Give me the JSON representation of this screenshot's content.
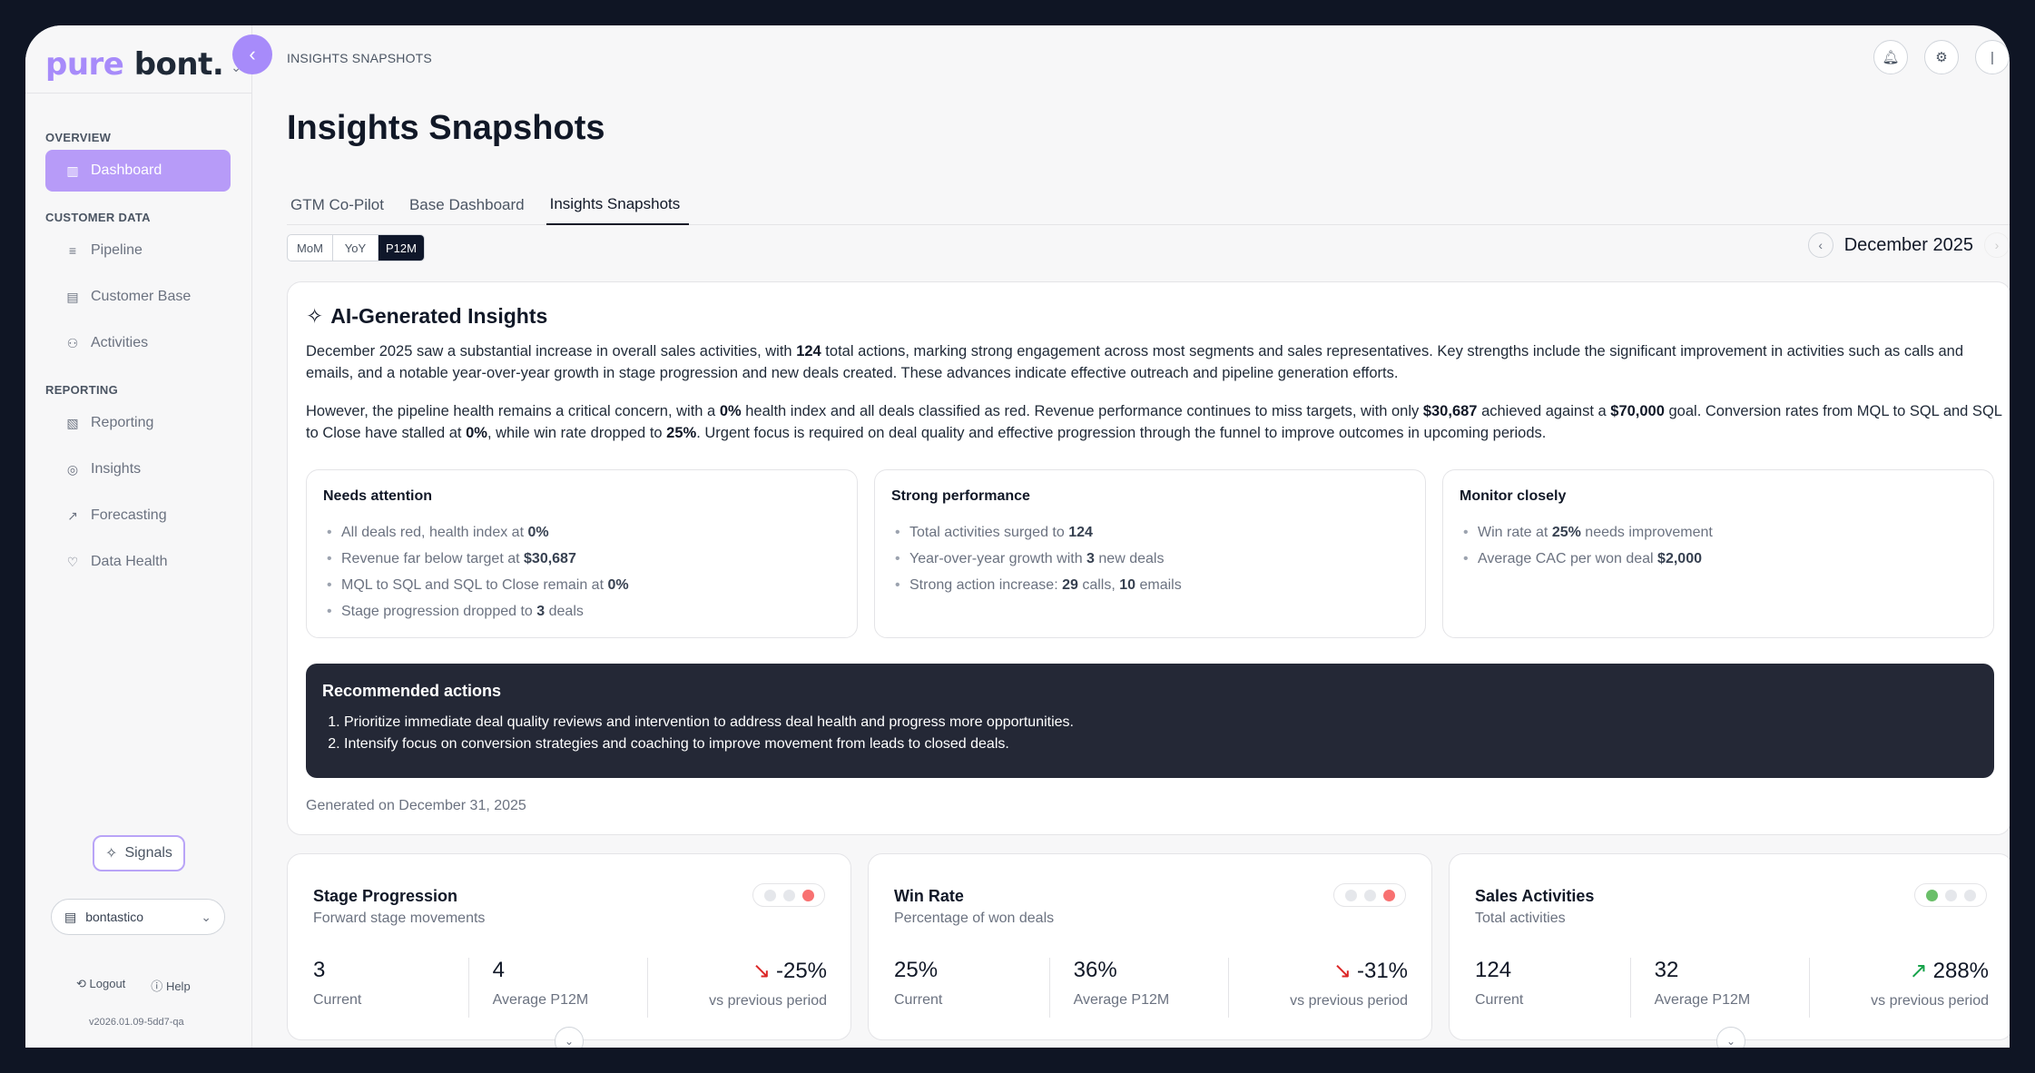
{
  "brand": {
    "part1": "pure",
    "part2": "bont."
  },
  "breadcrumb": "INSIGHTS SNAPSHOTS",
  "sidebar": {
    "sections": [
      {
        "label": "OVERVIEW",
        "items": [
          {
            "label": "Dashboard",
            "icon": "dashboard-icon",
            "active": true
          }
        ]
      },
      {
        "label": "CUSTOMER DATA",
        "items": [
          {
            "label": "Pipeline",
            "icon": "database-icon"
          },
          {
            "label": "Customer Base",
            "icon": "building-icon"
          },
          {
            "label": "Activities",
            "icon": "people-icon"
          }
        ]
      },
      {
        "label": "REPORTING",
        "items": [
          {
            "label": "Reporting",
            "icon": "report-icon"
          },
          {
            "label": "Insights",
            "icon": "insights-icon"
          },
          {
            "label": "Forecasting",
            "icon": "trend-icon"
          },
          {
            "label": "Data Health",
            "icon": "heart-icon"
          }
        ]
      }
    ],
    "signals_label": "Signals",
    "workspace": "bontastico",
    "logout_label": "Logout",
    "help_label": "Help",
    "version": "v2026.01.09-5dd7-qa"
  },
  "page": {
    "title": "Insights Snapshots",
    "tabs": [
      "GTM Co-Pilot",
      "Base Dashboard",
      "Insights Snapshots"
    ],
    "active_tab": "Insights Snapshots",
    "period_options": [
      "MoM",
      "YoY",
      "P12M"
    ],
    "selected_period": "P12M",
    "month": "December 2025"
  },
  "ai_insights": {
    "title": "AI-Generated Insights",
    "paragraph1": {
      "before_count": "December 2025 saw a substantial increase in overall sales activities, with ",
      "count": "124",
      "after_count": " total actions, marking strong engagement across most segments and sales representatives. Key strengths include the significant improvement in activities such as calls and emails, and a notable year-over-year growth in stage progression and new deals created. These advances indicate effective outreach and pipeline generation efforts."
    },
    "paragraph2": {
      "p1": "However, the pipeline health remains a critical concern, with a ",
      "v1": "0%",
      "p2": " health index and all deals classified as red. Revenue performance continues to miss targets, with only ",
      "v2": "$30,687",
      "p3": " achieved against a ",
      "v3": "$70,000",
      "p4": " goal. Conversion rates from MQL to SQL and SQL to Close have stalled at ",
      "v4": "0%",
      "p5": ", while win rate dropped to ",
      "v5": "25%",
      "p6": ". Urgent focus is required on deal quality and effective progression through the funnel to improve outcomes in upcoming periods."
    },
    "needs_attention": {
      "title": "Needs attention",
      "items": [
        {
          "text": "All deals red, health index at ",
          "value": "0%"
        },
        {
          "text": "Revenue far below target at ",
          "value": "$30,687"
        },
        {
          "text": "MQL to SQL and SQL to Close remain at ",
          "value": "0%"
        },
        {
          "text": "Stage progression dropped to ",
          "value": "3",
          "suffix": " deals"
        }
      ]
    },
    "strong_performance": {
      "title": "Strong performance",
      "items": [
        {
          "text": "Total activities surged to ",
          "value": "124"
        },
        {
          "text": "Year-over-year growth with ",
          "value": "3",
          "suffix": " new deals"
        },
        {
          "text": "Strong action increase: ",
          "value": "29",
          "suffix": " calls, ",
          "value2": "10",
          "suffix2": " emails"
        }
      ]
    },
    "monitor_closely": {
      "title": "Monitor closely",
      "items": [
        {
          "text": "Win rate at ",
          "value": "25%",
          "suffix": " needs improvement"
        },
        {
          "text": "Average CAC per won deal ",
          "value": "$2,000"
        }
      ]
    },
    "recommended": {
      "title": "Recommended actions",
      "items": [
        "Prioritize immediate deal quality reviews and intervention to address deal health and progress more opportunities.",
        "Intensify focus on conversion strategies and coaching to improve movement from leads to closed deals."
      ]
    },
    "generated_on": "Generated on December 31, 2025"
  },
  "metrics": [
    {
      "title": "Stage Progression",
      "subtitle": "Forward stage movements",
      "current": "3",
      "current_label": "Current",
      "average": "4",
      "average_label": "Average P12M",
      "delta": "-25%",
      "delta_label": "vs previous period",
      "trend": "down",
      "status": "red",
      "status_color": "#f87171"
    },
    {
      "title": "Win Rate",
      "subtitle": "Percentage of won deals",
      "current": "25%",
      "current_label": "Current",
      "average": "36%",
      "average_label": "Average P12M",
      "delta": "-31%",
      "delta_label": "vs previous period",
      "trend": "down",
      "status": "red",
      "status_color": "#f87171"
    },
    {
      "title": "Sales Activities",
      "subtitle": "Total activities",
      "current": "124",
      "current_label": "Current",
      "average": "32",
      "average_label": "Average P12M",
      "delta": "288%",
      "delta_label": "vs previous period",
      "trend": "up",
      "status": "green",
      "status_color": "#6abf69"
    }
  ],
  "colors": {
    "accent": "#a78bfa",
    "dark": "#242836",
    "down": "#dc2626",
    "up": "#16a34a"
  }
}
